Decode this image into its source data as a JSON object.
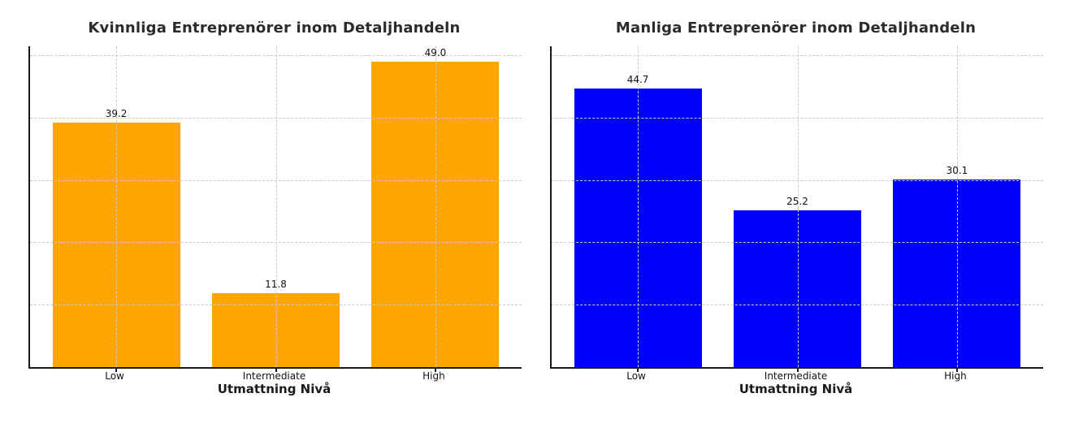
{
  "figure": {
    "background": "#ffffff",
    "spine_color": "#1a1a1a",
    "grid_color": "#c9c9c9",
    "text_color": "#111111",
    "title_color": "#2b2b2b"
  },
  "chart_data": [
    {
      "type": "bar",
      "title": "Kvinnliga Entreprenörer inom Detaljhandeln",
      "xlabel": "Utmattning Nivå",
      "ylabel": "",
      "categories": [
        "Low",
        "Intermediate",
        "High"
      ],
      "values": [
        39.2,
        11.8,
        49.0
      ],
      "value_labels": [
        "39.2",
        "11.8",
        "49.0"
      ],
      "bar_color": "#FFA500",
      "ylim": [
        0,
        51.45
      ],
      "grid_values": [
        10,
        20,
        30,
        40,
        50
      ],
      "grid_style": "dashed",
      "grid_above_bars": true,
      "legend": "none"
    },
    {
      "type": "bar",
      "title": "Manliga Entreprenörer inom Detaljhandeln",
      "xlabel": "Utmattning Nivå",
      "ylabel": "",
      "categories": [
        "Low",
        "Intermediate",
        "High"
      ],
      "values": [
        44.7,
        25.2,
        30.1
      ],
      "value_labels": [
        "44.7",
        "25.2",
        "30.1"
      ],
      "bar_color": "#0000FF",
      "ylim": [
        0,
        51.45
      ],
      "grid_values": [
        10,
        20,
        30,
        40,
        50
      ],
      "grid_style": "dashed",
      "grid_above_bars": true,
      "legend": "none"
    }
  ]
}
